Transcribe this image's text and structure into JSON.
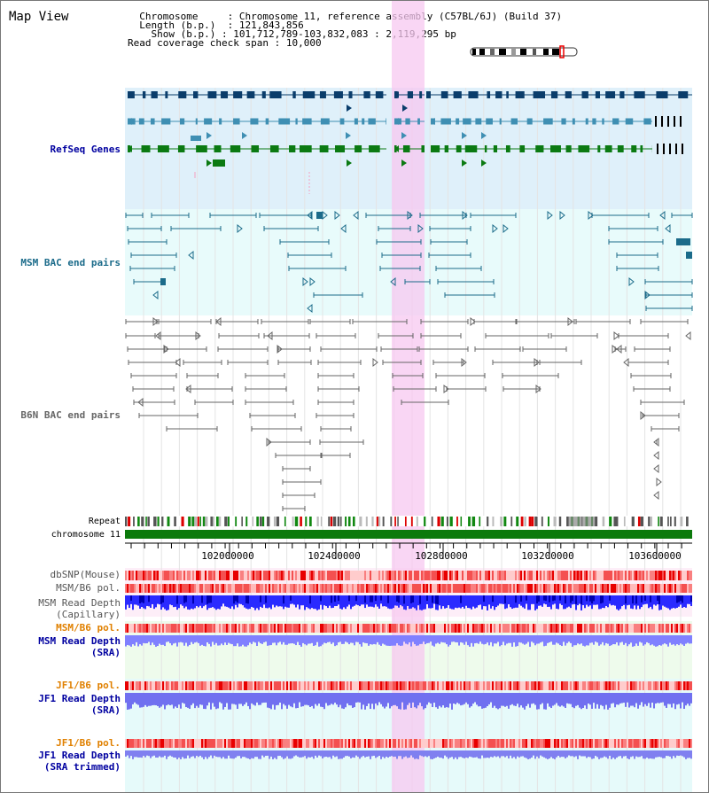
{
  "title": "Map View",
  "header": {
    "chromosome_key": "Chromosome",
    "chromosome_val": "Chromosome 11, reference assembly (C57BL/6J) (Build 37)",
    "length_key": "Length (b.p.)",
    "length_val": "121,843,856",
    "show_key": "Show (b.p.)",
    "show_val": "101,712,789-103,832,083 : 2,119,295 bp",
    "coverage_key": "Read coverage check span",
    "coverage_val": "10,000"
  },
  "tracks": {
    "refseq": "RefSeq Genes",
    "msm_bac": "MSM BAC end pairs",
    "b6n_bac": "B6N BAC end pairs",
    "repeat": "Repeat",
    "chromosome": "chromosome 11",
    "dbsnp": "dbSNP(Mouse)",
    "msm_b6_pol_1": "MSM/B6 pol.",
    "msm_depth_cap_1": "MSM Read Depth",
    "msm_depth_cap_2": "(Capillary)",
    "msm_b6_pol_2": "MSM/B6 pol.",
    "msm_depth_sra_1": "MSM Read Depth",
    "msm_depth_sra_2": "(SRA)",
    "jf1_pol_1": "JF1/B6 pol.",
    "jf1_depth_sra_1": "JF1 Read Depth",
    "jf1_depth_sra_2": "(SRA)",
    "jf1_pol_2": "JF1/B6 pol.",
    "jf1_depth_trim_1": "JF1 Read Depth",
    "jf1_depth_trim_2": "(SRA trimmed)"
  },
  "axis": {
    "ticks": [
      "102000000",
      "102400000",
      "102800000",
      "103200000",
      "103600000"
    ]
  },
  "colors": {
    "refseq_dark": "#0a3d6b",
    "refseq_mid": "#3f8fb3",
    "refseq_green": "#0b7a12",
    "msm_line": "#1b6b8a",
    "b6n_line": "#666666",
    "highlight": "#f7c8f0",
    "label_blue": "#0000a0",
    "label_orange": "#e08000",
    "label_teal": "#1b6b8a"
  },
  "selection_range": "102,572,000-102,690,000"
}
